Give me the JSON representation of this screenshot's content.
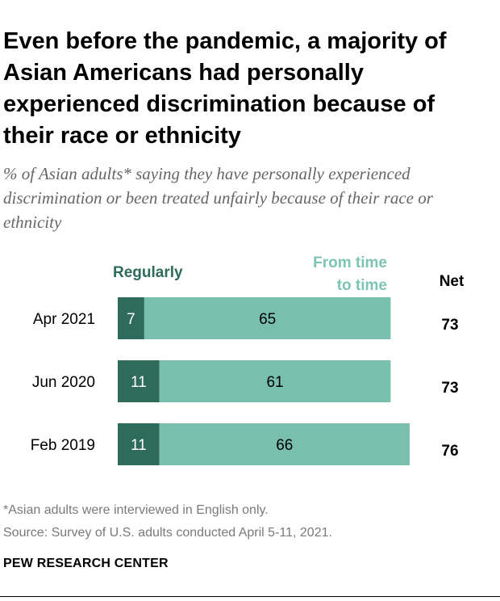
{
  "title": "Even before the pandemic, a majority of Asian Americans had personally experienced discrimination because of their race or ethnicity",
  "subtitle": "% of Asian adults* saying they have personally experienced discrimination or been treated unfairly because of their race or ethnicity",
  "footnote": "*Asian adults were interviewed in English only.",
  "source": "Source: Survey of U.S. adults conducted April 5-11, 2021.",
  "org": "PEW RESEARCH CENTER",
  "colors": {
    "regularly": "#2e6b5a",
    "from_time": "#78bfae",
    "from_time_label": "#7cc5b3"
  },
  "chart_data": {
    "type": "bar",
    "orientation": "horizontal",
    "stacked": true,
    "categories": [
      "Apr 2021",
      "Jun 2020",
      "Feb 2019"
    ],
    "series": [
      {
        "name": "Regularly",
        "values": [
          7,
          11,
          11
        ]
      },
      {
        "name": "From time to time",
        "values": [
          65,
          61,
          66
        ]
      }
    ],
    "net_header": "Net",
    "net": [
      73,
      73,
      76
    ],
    "legend_labels": {
      "regularly": "Regularly",
      "from_time": [
        "From time",
        "to time"
      ]
    }
  }
}
